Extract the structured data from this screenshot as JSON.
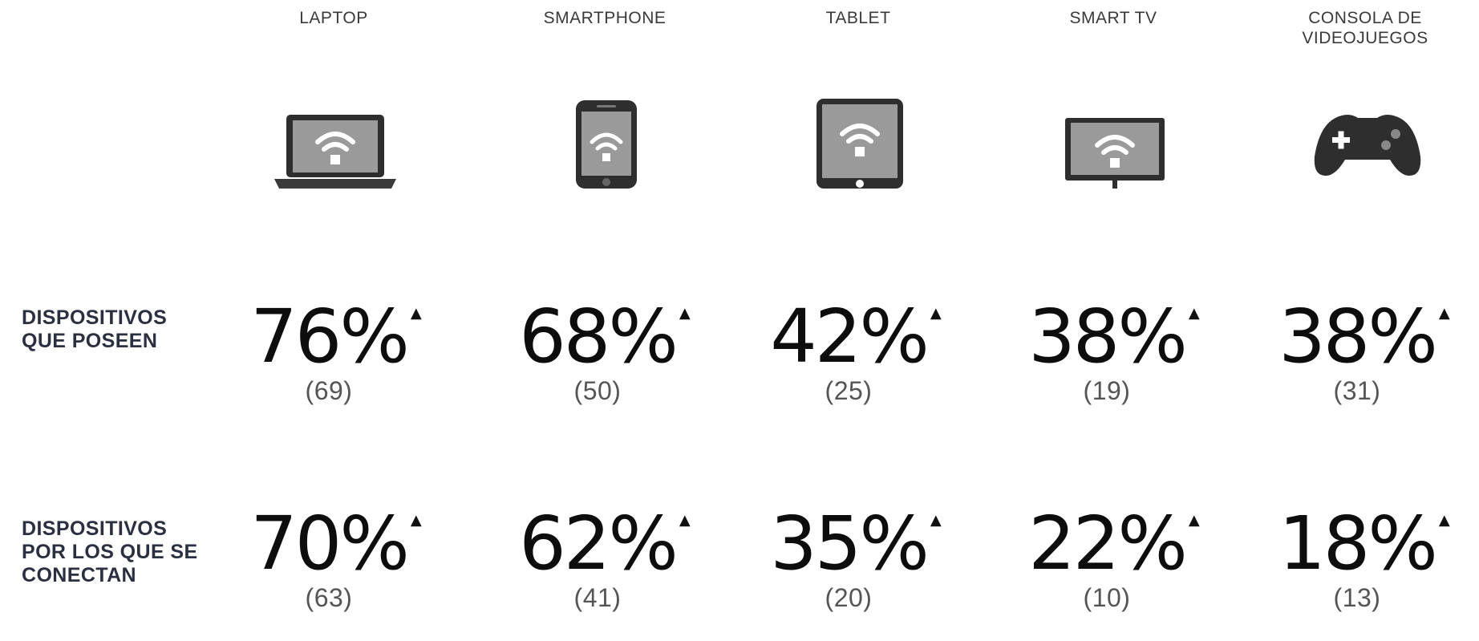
{
  "columns": [
    {
      "label": "LAPTOP",
      "icon": "laptop-icon"
    },
    {
      "label": "SMARTPHONE",
      "icon": "smartphone-icon"
    },
    {
      "label": "TABLET",
      "icon": "tablet-icon"
    },
    {
      "label": "SMART TV",
      "icon": "smart-tv-icon"
    },
    {
      "label": "CONSOLA DE\nVIDEOJUEGOS",
      "icon": "gamepad-icon"
    }
  ],
  "rows": [
    {
      "label": "DISPOSITIVOS\nQUE POSEEN",
      "values": [
        {
          "pct": "76%",
          "count": "(69)",
          "arrow": "▲"
        },
        {
          "pct": "68%",
          "count": "(50)",
          "arrow": "▲"
        },
        {
          "pct": "42%",
          "count": "(25)",
          "arrow": "▲"
        },
        {
          "pct": "38%",
          "count": "(19)",
          "arrow": "▲"
        },
        {
          "pct": "38%",
          "count": "(31)",
          "arrow": "▲"
        }
      ]
    },
    {
      "label": "DISPOSITIVOS\nPOR LOS QUE SE\nCONECTAN",
      "values": [
        {
          "pct": "70%",
          "count": "(63)",
          "arrow": "▲"
        },
        {
          "pct": "62%",
          "count": "(41)",
          "arrow": "▲"
        },
        {
          "pct": "35%",
          "count": "(20)",
          "arrow": "▲"
        },
        {
          "pct": "22%",
          "count": "(10)",
          "arrow": "▲"
        },
        {
          "pct": "18%",
          "count": "(13)",
          "arrow": "▲"
        }
      ]
    }
  ],
  "colors": {
    "icon_dark": "#2e2e2e",
    "screen": "#9a9a9a",
    "wifi": "#ffffff",
    "label": "#2b3040"
  }
}
